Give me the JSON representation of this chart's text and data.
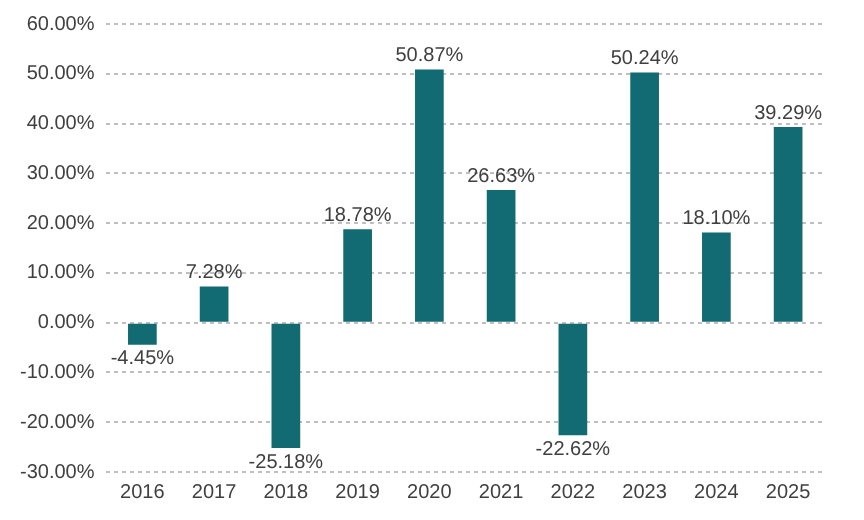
{
  "chart_data": {
    "type": "bar",
    "categories": [
      "2016",
      "2017",
      "2018",
      "2019",
      "2020",
      "2021",
      "2022",
      "2023",
      "2024",
      "2025"
    ],
    "values": [
      -4.45,
      7.28,
      -25.18,
      18.78,
      50.87,
      26.63,
      -22.62,
      50.24,
      18.1,
      39.29
    ],
    "value_labels": [
      "-4.45%",
      "7.28%",
      "-25.18%",
      "18.78%",
      "50.87%",
      "26.63%",
      "-22.62%",
      "50.24%",
      "18.10%",
      "39.29%"
    ],
    "color": "#126b73",
    "ylim": [
      -30,
      60
    ],
    "yticks": [
      {
        "value": -30,
        "label": "-30.00%"
      },
      {
        "value": -20,
        "label": "-20.00%"
      },
      {
        "value": -10,
        "label": "-10.00%"
      },
      {
        "value": 0,
        "label": "0.00%"
      },
      {
        "value": 10,
        "label": "10.00%"
      },
      {
        "value": 20,
        "label": "20.00%"
      },
      {
        "value": 30,
        "label": "30.00%"
      },
      {
        "value": 40,
        "label": "40.00%"
      },
      {
        "value": 50,
        "label": "50.00%"
      },
      {
        "value": 60,
        "label": "60.00%"
      }
    ],
    "grid": "y",
    "legend": false
  }
}
